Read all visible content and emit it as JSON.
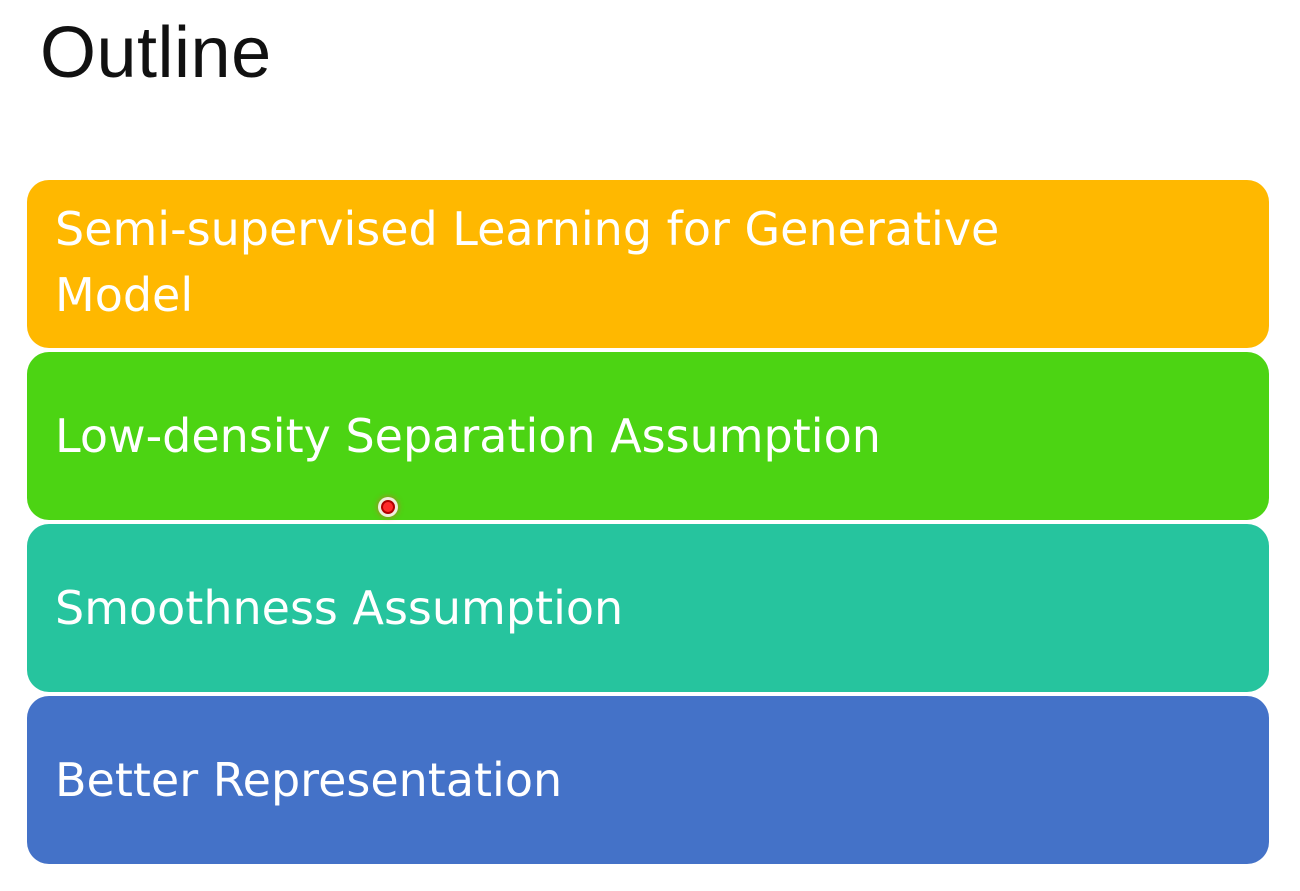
{
  "slide": {
    "title": "Outline"
  },
  "outline": {
    "items": [
      {
        "label": "Semi-supervised Learning for Generative Model",
        "color": "#FFB800"
      },
      {
        "label": "Low-density Separation Assumption",
        "color": "#4CD413"
      },
      {
        "label": "Smoothness Assumption",
        "color": "#26C49E"
      },
      {
        "label": "Better Representation",
        "color": "#4472C8"
      }
    ]
  },
  "pointer": {
    "icon": "laser-pointer-icon",
    "color": "#FF2A2A"
  }
}
